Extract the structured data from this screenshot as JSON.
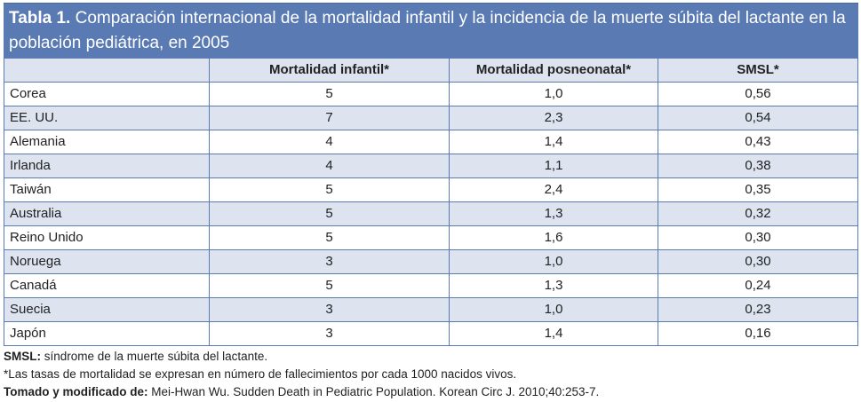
{
  "title": {
    "label": "Tabla 1.",
    "text": " Comparación internacional de la mortalidad infantil y la incidencia de la muerte súbita del lactante en la población pediátrica, en 2005"
  },
  "columns": [
    "",
    "Mortalidad infantil*",
    "Mortalidad posneonatal*",
    "SMSL*"
  ],
  "rows": [
    [
      "Corea",
      "5",
      "1,0",
      "0,56"
    ],
    [
      "EE. UU.",
      "7",
      "2,3",
      "0,54"
    ],
    [
      "Alemania",
      "4",
      "1,4",
      "0,43"
    ],
    [
      "Irlanda",
      "4",
      "1,1",
      "0,38"
    ],
    [
      "Taiwán",
      "5",
      "2,4",
      "0,35"
    ],
    [
      "Australia",
      "5",
      "1,3",
      "0,32"
    ],
    [
      "Reino Unido",
      "5",
      "1,6",
      "0,30"
    ],
    [
      "Noruega",
      "3",
      "1,0",
      "0,30"
    ],
    [
      "Canadá",
      "5",
      "1,3",
      "0,24"
    ],
    [
      "Suecia",
      "3",
      "1,0",
      "0,23"
    ],
    [
      "Japón",
      "3",
      "1,4",
      "0,16"
    ]
  ],
  "notes": {
    "abbr_label": "SMSL:",
    "abbr_text": " síndrome de la muerte súbita del lactante.",
    "asterisk": "*Las tasas de mortalidad se expresan en número de fallecimientos por cada 1000 nacidos vivos.",
    "source_label": "Tomado y modificado de:",
    "source_text": " Mei-Hwan Wu. Sudden Death in Pediatric Population. Korean Circ J. 2010;40:253-7."
  }
}
